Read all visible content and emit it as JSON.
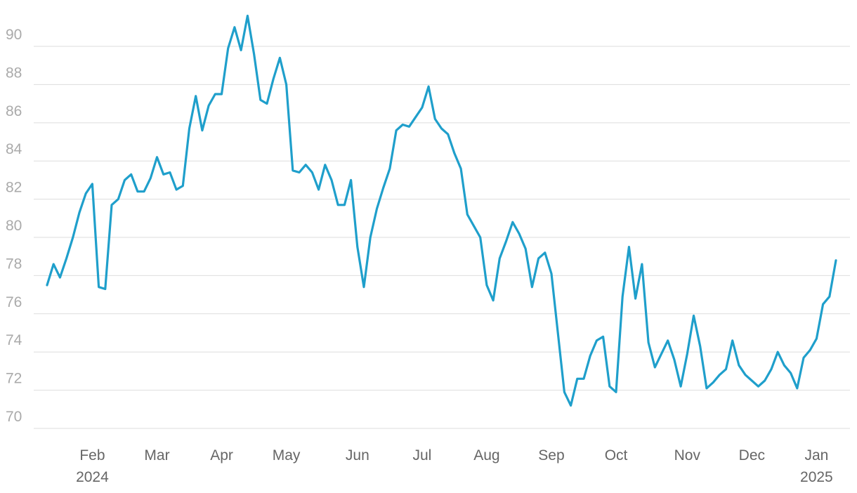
{
  "chart_data": {
    "type": "line",
    "categories": [
      null,
      null,
      null,
      null,
      null,
      null,
      null,
      "Feb 2024",
      null,
      null,
      null,
      null,
      null,
      null,
      null,
      null,
      null,
      "Mar",
      null,
      null,
      null,
      null,
      null,
      null,
      null,
      null,
      null,
      "Apr",
      null,
      null,
      null,
      null,
      null,
      null,
      null,
      null,
      null,
      "May",
      null,
      null,
      null,
      null,
      null,
      null,
      null,
      null,
      null,
      null,
      "Jun",
      null,
      null,
      null,
      null,
      null,
      null,
      null,
      null,
      null,
      "Jul",
      null,
      null,
      null,
      null,
      null,
      null,
      null,
      null,
      null,
      "Aug",
      null,
      null,
      null,
      null,
      null,
      null,
      null,
      null,
      null,
      "Sep",
      null,
      null,
      null,
      null,
      null,
      null,
      null,
      null,
      null,
      "Oct",
      null,
      null,
      null,
      null,
      null,
      null,
      null,
      null,
      null,
      null,
      "Nov",
      null,
      null,
      null,
      null,
      null,
      null,
      null,
      null,
      null,
      "Dec",
      null,
      null,
      null,
      null,
      null,
      null,
      null,
      null,
      null,
      "Jan 2025",
      null,
      null,
      null
    ],
    "series": [
      {
        "color": "#1f9fcb",
        "values": [
          77.5,
          78.6,
          77.9,
          78.9,
          80.0,
          81.3,
          82.3,
          82.8,
          77.4,
          77.3,
          81.7,
          82.0,
          83.0,
          83.3,
          82.4,
          82.4,
          83.1,
          84.2,
          83.3,
          83.4,
          82.5,
          82.7,
          85.7,
          87.4,
          85.6,
          86.9,
          87.5,
          87.5,
          89.9,
          91.0,
          89.8,
          91.6,
          89.6,
          87.2,
          87.0,
          88.3,
          89.4,
          88.0,
          83.5,
          83.4,
          83.8,
          83.4,
          82.5,
          83.8,
          83.0,
          81.7,
          81.7,
          83.0,
          79.5,
          77.4,
          80.0,
          81.5,
          82.6,
          83.6,
          85.6,
          85.9,
          85.8,
          86.3,
          86.8,
          87.9,
          86.2,
          85.7,
          85.4,
          84.4,
          83.6,
          81.2,
          80.6,
          80.0,
          77.5,
          76.7,
          78.9,
          79.8,
          80.8,
          80.2,
          79.4,
          77.4,
          78.9,
          79.2,
          78.1,
          75.0,
          71.9,
          71.2,
          72.6,
          72.6,
          73.8,
          74.6,
          74.8,
          72.2,
          71.9,
          76.9,
          79.5,
          76.8,
          78.6,
          74.5,
          73.2,
          73.9,
          74.6,
          73.6,
          72.2,
          73.9,
          75.9,
          74.3,
          72.1,
          72.4,
          72.8,
          73.1,
          74.6,
          73.3,
          72.8,
          72.5,
          72.2,
          72.5,
          73.1,
          74.0,
          73.3,
          72.9,
          72.1,
          73.7,
          74.1,
          74.7,
          76.5,
          76.9,
          78.8
        ]
      }
    ],
    "ylim": [
      69.5,
      91.7
    ],
    "yticks": [
      70,
      72,
      74,
      76,
      78,
      80,
      82,
      84,
      86,
      88,
      90
    ],
    "grid": true
  }
}
